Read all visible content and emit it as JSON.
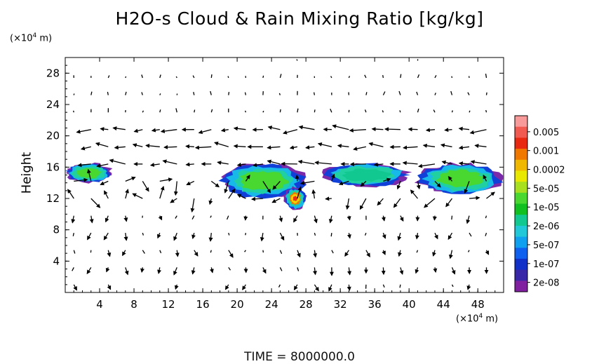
{
  "chart_data": {
    "type": "heatmap",
    "title": "H2O-s Cloud & Rain Mixing Ratio [kg/kg]",
    "ylabel": "Height",
    "xlabel": "",
    "x_unit": "(×10⁴ m)",
    "y_unit": "(×10⁴ m)",
    "xlim": [
      0,
      51
    ],
    "ylim": [
      0,
      30
    ],
    "x_ticks": [
      "4",
      "8",
      "12",
      "16",
      "20",
      "24",
      "28",
      "32",
      "36",
      "40",
      "44",
      "48"
    ],
    "y_ticks": [
      "4",
      "8",
      "12",
      "16",
      "20",
      "24",
      "28"
    ],
    "footer": "TIME = 8000000.0",
    "colorbar": {
      "labels": [
        "0.005",
        "0.001",
        "0.0002",
        "5e-05",
        "1e-05",
        "2e-06",
        "5e-07",
        "1e-07",
        "2e-08"
      ],
      "colors": [
        "#f89a9a",
        "#f05a50",
        "#e82810",
        "#f07800",
        "#f0b800",
        "#e8e800",
        "#a8e020",
        "#48d830",
        "#10c020",
        "#10c890",
        "#20c8d8",
        "#10a0f0",
        "#1060f0",
        "#1030c8",
        "#3828a8",
        "#8020a0"
      ]
    },
    "cloud_regions": [
      {
        "x": [
          0,
          5.5
        ],
        "y": [
          14,
          16.5
        ],
        "level": "1e-05"
      },
      {
        "x": [
          18,
          28
        ],
        "y": [
          12,
          16.5
        ],
        "level": "1e-05"
      },
      {
        "x": [
          25.5,
          28
        ],
        "y": [
          10.5,
          13.5
        ],
        "level": "0.0002"
      },
      {
        "x": [
          30,
          40
        ],
        "y": [
          13.5,
          16.5
        ],
        "level": "2e-06"
      },
      {
        "x": [
          41,
          51
        ],
        "y": [
          12.5,
          16.5
        ],
        "level": "1e-05"
      }
    ]
  }
}
